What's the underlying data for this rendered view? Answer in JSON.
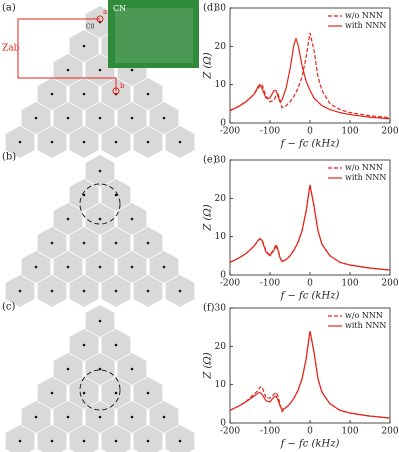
{
  "diagrams": {
    "panel_labels": [
      "(a)",
      "(b)",
      "(c)"
    ],
    "z_ab": "Zab",
    "cn": "CN",
    "c0": "C0",
    "a": "a",
    "b": "b"
  },
  "chart_data": [
    {
      "type": "line",
      "panel_label": "(d)",
      "xlabel": "f − fc (kHz)",
      "ylabel": "Z (Ω)",
      "xlim": [
        -200,
        200
      ],
      "ylim": [
        0,
        30
      ],
      "xticks": [
        -200,
        -100,
        0,
        100,
        200
      ],
      "yticks": [
        0,
        10,
        20,
        30
      ],
      "legend": "upper right",
      "x": [
        -200,
        -180,
        -160,
        -140,
        -130,
        -125,
        -120,
        -110,
        -100,
        -90,
        -85,
        -80,
        -75,
        -70,
        -60,
        -50,
        -40,
        -35,
        -30,
        -20,
        -10,
        0,
        10,
        20,
        30,
        50,
        75,
        100,
        150,
        200
      ],
      "series": [
        {
          "name": "w/o NNN",
          "color": "#e3241b",
          "linestyle": "dashed",
          "values": [
            3.3,
            4.3,
            5.6,
            7.5,
            9,
            9.8,
            10,
            7,
            5.5,
            6,
            7,
            7.5,
            6,
            4,
            4.5,
            5.5,
            7,
            8,
            9,
            12,
            17,
            23.5,
            19,
            12,
            8.5,
            5,
            3.5,
            2.7,
            1.9,
            1.4
          ]
        },
        {
          "name": "with NNN",
          "color": "#e3241b",
          "linestyle": "solid",
          "values": [
            3.2,
            4.2,
            5.5,
            7.5,
            9.5,
            10,
            9,
            6.5,
            6.5,
            8.5,
            8.5,
            7,
            5.5,
            6,
            9,
            14,
            20.5,
            22,
            20.5,
            15,
            11,
            8.5,
            6.5,
            5.5,
            4.5,
            3.5,
            2.7,
            2.2,
            1.5,
            1.1
          ]
        }
      ]
    },
    {
      "type": "line",
      "panel_label": "(e)",
      "xlabel": "f − fc (kHz)",
      "ylabel": "Z (Ω)",
      "xlim": [
        -200,
        200
      ],
      "ylim": [
        0,
        30
      ],
      "xticks": [
        -200,
        -100,
        0,
        100,
        200
      ],
      "yticks": [
        0,
        10,
        20,
        30
      ],
      "legend": "upper right",
      "x": [
        -200,
        -180,
        -160,
        -140,
        -130,
        -125,
        -120,
        -110,
        -100,
        -90,
        -85,
        -80,
        -75,
        -70,
        -60,
        -50,
        -40,
        -35,
        -30,
        -20,
        -10,
        0,
        10,
        20,
        30,
        50,
        75,
        100,
        150,
        200
      ],
      "series": [
        {
          "name": "w/o NNN",
          "color": "#e3241b",
          "linestyle": "dashed",
          "values": [
            3.3,
            4.3,
            5.6,
            7.5,
            9,
            9.3,
            9.3,
            6.2,
            5.2,
            6.8,
            8,
            6.8,
            4.6,
            3.5,
            4,
            5,
            6.5,
            7.5,
            8.5,
            11.5,
            16.5,
            23.5,
            18,
            11.5,
            8,
            5,
            3.3,
            2.6,
            1.8,
            1.3
          ]
        },
        {
          "name": "with NNN",
          "color": "#e3241b",
          "linestyle": "solid",
          "values": [
            3.3,
            4.3,
            5.6,
            7.5,
            9,
            9.5,
            9,
            6,
            5,
            6.5,
            7.5,
            6.5,
            4.5,
            3.5,
            4,
            5,
            6.5,
            7.5,
            8.5,
            11.5,
            16.5,
            23.5,
            18,
            11.5,
            8,
            5,
            3.3,
            2.6,
            1.8,
            1.3
          ]
        }
      ]
    },
    {
      "type": "line",
      "panel_label": "(f)",
      "xlabel": "f − fc (kHz)",
      "ylabel": "Z (Ω)",
      "xlim": [
        -200,
        200
      ],
      "ylim": [
        0,
        30
      ],
      "xticks": [
        -200,
        -100,
        0,
        100,
        200
      ],
      "yticks": [
        0,
        10,
        20,
        30
      ],
      "legend": "upper right",
      "x": [
        -200,
        -180,
        -160,
        -140,
        -130,
        -125,
        -120,
        -110,
        -100,
        -90,
        -85,
        -80,
        -75,
        -70,
        -60,
        -50,
        -40,
        -35,
        -30,
        -20,
        -10,
        0,
        10,
        20,
        30,
        50,
        75,
        100,
        150,
        200
      ],
      "series": [
        {
          "name": "w/o NNN",
          "color": "#e3241b",
          "linestyle": "dashed",
          "values": [
            3.3,
            4.3,
            5.6,
            7.5,
            8.5,
            9.3,
            9.5,
            6.5,
            6.5,
            7.5,
            8,
            7,
            5,
            3,
            4,
            5,
            6.5,
            7.5,
            8.5,
            11.5,
            16.5,
            24,
            18.5,
            11.5,
            8,
            5,
            3.3,
            2.6,
            1.8,
            1.3
          ]
        },
        {
          "name": "with NNN",
          "color": "#e3241b",
          "linestyle": "solid",
          "values": [
            3.3,
            4.3,
            5.5,
            7,
            7.8,
            8,
            7.5,
            5.8,
            5.5,
            6.8,
            7,
            6,
            4.5,
            3.5,
            4,
            5,
            6.5,
            7.5,
            8.5,
            11.5,
            16.5,
            24,
            18.5,
            11.5,
            8,
            5,
            3.3,
            2.6,
            1.8,
            1.3
          ]
        }
      ]
    }
  ]
}
